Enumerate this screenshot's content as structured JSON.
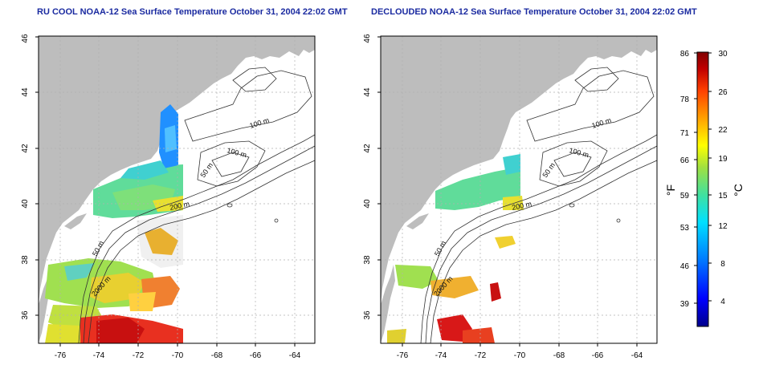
{
  "left_panel": {
    "title": "RU COOL NOAA-12 Sea Surface Temperature October 31, 2004 22:02 GMT",
    "contour_labels": [
      "100 m",
      "100 m",
      "50 m",
      "200 m",
      "50 m",
      "2000 m"
    ]
  },
  "right_panel": {
    "title": "DECLOUDED NOAA-12 Sea Surface Temperature October 31, 2004 22:02 GMT",
    "contour_labels": [
      "100 m",
      "100 m",
      "50 m",
      "200 m",
      "50 m",
      "2000 m"
    ]
  },
  "axes": {
    "lon_ticks": [
      "-76",
      "-74",
      "-72",
      "-70",
      "-68",
      "-66",
      "-64"
    ],
    "lat_ticks": [
      "36",
      "38",
      "40",
      "42",
      "44",
      "46"
    ],
    "lon_range": [
      -77.2,
      -63.0
    ],
    "lat_range": [
      35.0,
      46.0
    ]
  },
  "colorbar": {
    "fahrenheit_label": "°F",
    "celsius_label": "°C",
    "fahrenheit_ticks": [
      "86",
      "78",
      "71",
      "66",
      "59",
      "53",
      "46",
      "39"
    ],
    "celsius_ticks": [
      "30",
      "26",
      "22",
      "19",
      "15",
      "12",
      "8",
      "4"
    ],
    "colors": [
      "#00008b",
      "#0000ff",
      "#0080ff",
      "#00e0ff",
      "#40e0a0",
      "#a0e040",
      "#ffff00",
      "#ffa000",
      "#ff4000",
      "#c00000",
      "#800000"
    ]
  },
  "colors": {
    "land": "#bdbdbd",
    "title": "#1a2aa0",
    "grid": "#b0b0b0"
  }
}
